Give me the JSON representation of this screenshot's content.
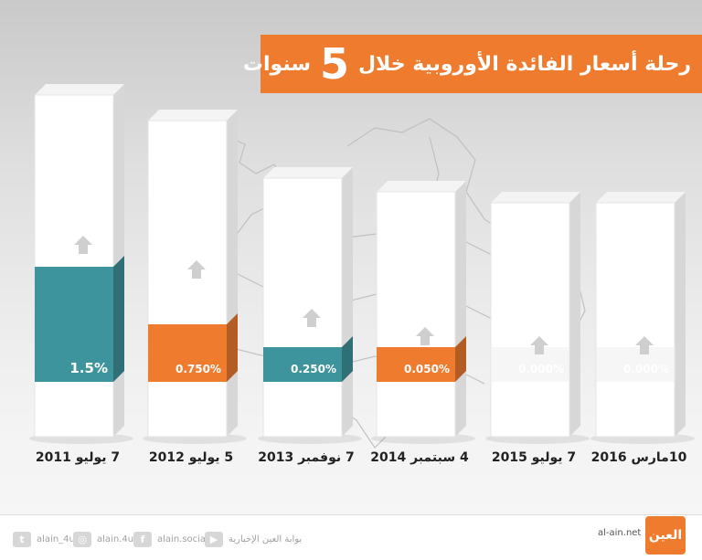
{
  "title": {
    "text": "رحلة أسعار الفائدة الأوروبية خلال",
    "number": "5",
    "suffix": "سنوات"
  },
  "chart_data": {
    "type": "bar",
    "categories": [
      "7 يوليو 2011",
      "5 يوليو 2012",
      "7 نوفمبر 2013",
      "4 سبتمبر 2014",
      "7 يوليو 2015",
      "10مارس 2016"
    ],
    "values": [
      1.5,
      0.75,
      0.25,
      0.05,
      0.0,
      0.0
    ],
    "labels": [
      "1.5%",
      "0.750%",
      "0.250%",
      "0.050%",
      "0.000%",
      "0.000%"
    ],
    "colors": [
      "#3e949c",
      "#ee7b2e",
      "#3e949c",
      "#ee7b2e",
      "#3e949c",
      "#3e949c"
    ],
    "title": "رحلة أسعار الفائدة الأوروبية خلال 5 سنوات",
    "xlabel": "",
    "ylabel": "",
    "grid": false,
    "legend": "none"
  },
  "footer": {
    "twitter": "alain_4u",
    "instagram": "alain.4u",
    "facebook": "alain.social",
    "youtube": "بوابة العين الإخبارية",
    "site": "al-ain.net",
    "logo": "العين",
    "icons": [
      "twitter-icon",
      "instagram-icon",
      "facebook-icon",
      "youtube-icon"
    ]
  }
}
